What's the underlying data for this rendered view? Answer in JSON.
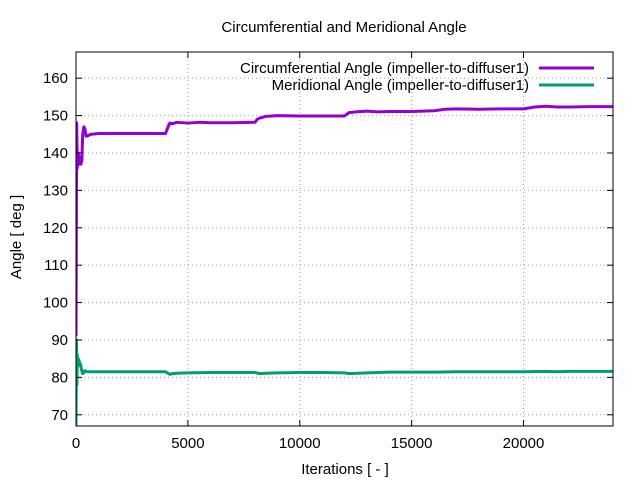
{
  "chart_data": {
    "type": "line",
    "title": "Circumferential and Meridional Angle",
    "xlabel": "Iterations [ - ]",
    "ylabel": "Angle [ deg ]",
    "xlim": [
      0,
      24000
    ],
    "ylim": [
      67,
      167
    ],
    "xticks": [
      0,
      5000,
      10000,
      15000,
      20000
    ],
    "yticks": [
      70,
      80,
      90,
      100,
      110,
      120,
      130,
      140,
      150,
      160
    ],
    "grid": true,
    "legend_position": "top-right",
    "series": [
      {
        "name": "Circumferential Angle (impeller-to-diffuser1)",
        "color": "#9400d3",
        "x": [
          0,
          30,
          60,
          100,
          140,
          180,
          220,
          260,
          300,
          350,
          400,
          450,
          500,
          550,
          600,
          650,
          700,
          1000,
          2000,
          3000,
          4000,
          4150,
          4200,
          4300,
          4500,
          5000,
          5500,
          6000,
          7000,
          8000,
          8100,
          8200,
          8500,
          9000,
          10000,
          11000,
          12000,
          12200,
          12500,
          13000,
          13500,
          14000,
          15000,
          16000,
          16500,
          17000,
          18000,
          19000,
          20000,
          20500,
          21000,
          21500,
          22000,
          23000,
          24000
        ],
        "values": [
          91,
          148,
          136,
          140,
          137,
          139,
          137,
          138,
          145,
          147,
          146.5,
          144.5,
          144.5,
          144.7,
          144.8,
          145,
          145,
          145.2,
          145.2,
          145.2,
          145.2,
          147.5,
          148,
          147.8,
          148.2,
          148,
          148.2,
          148.1,
          148.1,
          148.2,
          149,
          149.3,
          149.8,
          150,
          149.9,
          149.9,
          149.9,
          150.8,
          151,
          151.2,
          151,
          151.1,
          151.1,
          151.3,
          151.7,
          151.8,
          151.7,
          151.8,
          151.8,
          152.3,
          152.5,
          152.3,
          152.3,
          152.4,
          152.4
        ]
      },
      {
        "name": "Meridional Angle (impeller-to-diffuser1)",
        "color": "#009e73",
        "x": [
          0,
          20,
          40,
          60,
          80,
          100,
          130,
          160,
          200,
          250,
          300,
          350,
          400,
          450,
          500,
          700,
          1000,
          2000,
          3000,
          4000,
          4200,
          4300,
          4500,
          5000,
          6000,
          7000,
          8000,
          8200,
          8500,
          9000,
          10000,
          11000,
          12000,
          12200,
          12600,
          13000,
          14000,
          15000,
          16000,
          17000,
          18000,
          19000,
          20000,
          21000,
          21500,
          22000,
          23000,
          24000
        ],
        "values": [
          67,
          90,
          78,
          86,
          83,
          85,
          84.5,
          84,
          83.5,
          82,
          81,
          81.3,
          81.8,
          81.6,
          81.5,
          81.5,
          81.5,
          81.5,
          81.5,
          81.5,
          80.8,
          81,
          81.1,
          81.2,
          81.3,
          81.3,
          81.3,
          81,
          81.1,
          81.2,
          81.3,
          81.3,
          81.2,
          81,
          81.1,
          81.2,
          81.4,
          81.4,
          81.4,
          81.5,
          81.5,
          81.5,
          81.5,
          81.6,
          81.5,
          81.6,
          81.6,
          81.6
        ]
      }
    ]
  }
}
